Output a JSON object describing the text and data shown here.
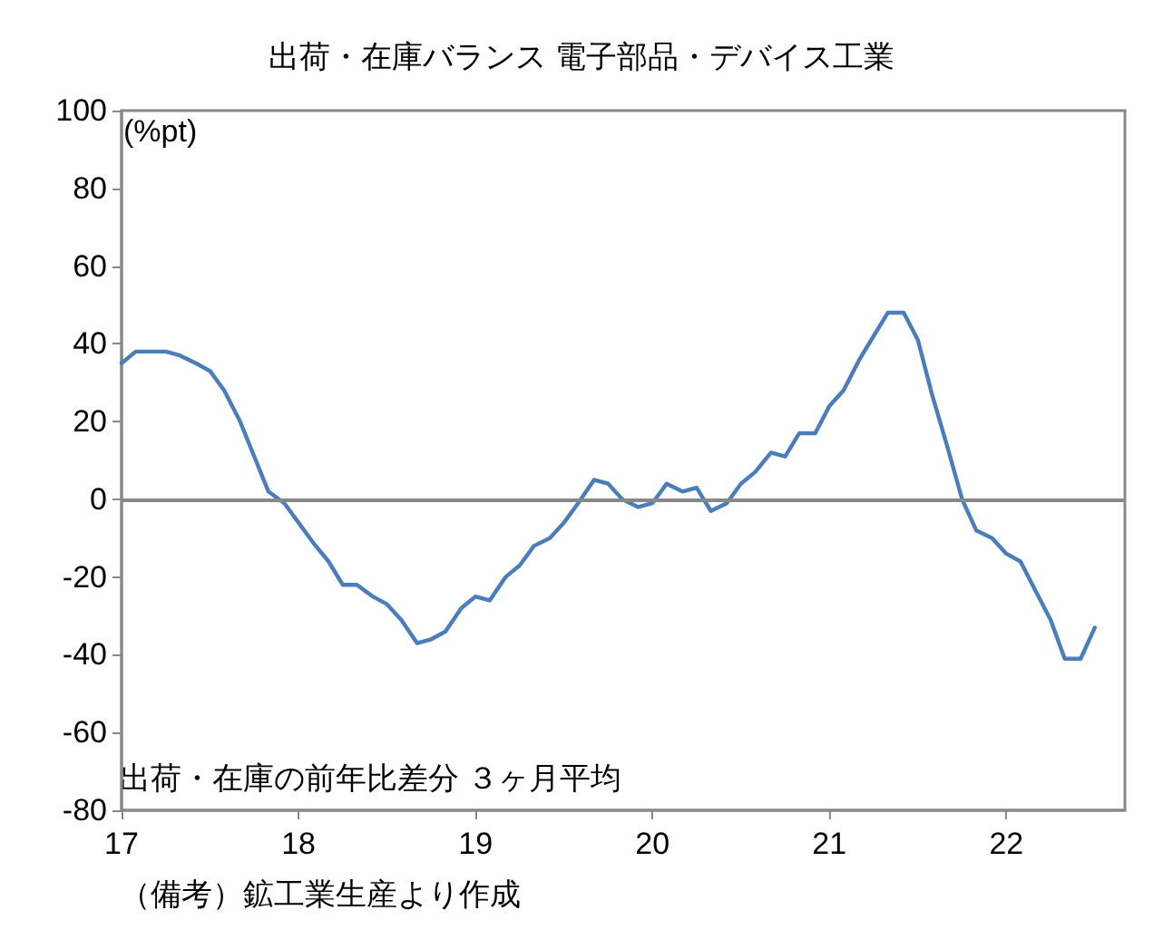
{
  "chart_data": {
    "type": "line",
    "title": "出荷・在庫バランス 電子部品・デバイス工業",
    "ylabel": "(%pt)",
    "annotations": [
      "出荷・在庫の前年比差分 ３ヶ月平均",
      "（備考）鉱工業生産より作成"
    ],
    "x": [
      17,
      17.08,
      17.17,
      17.25,
      17.33,
      17.42,
      17.5,
      17.58,
      17.67,
      17.75,
      17.83,
      17.92,
      18,
      18.08,
      18.17,
      18.25,
      18.33,
      18.42,
      18.5,
      18.58,
      18.67,
      18.75,
      18.83,
      18.92,
      19,
      19.08,
      19.17,
      19.25,
      19.33,
      19.42,
      19.5,
      19.58,
      19.67,
      19.75,
      19.83,
      19.92,
      20,
      20.08,
      20.17,
      20.25,
      20.33,
      20.42,
      20.5,
      20.58,
      20.67,
      20.75,
      20.83,
      20.92,
      21,
      21.08,
      21.17,
      21.25,
      21.33,
      21.42,
      21.5,
      21.58,
      21.67,
      21.75,
      21.83,
      21.92,
      22,
      22.08,
      22.17,
      22.25,
      22.33,
      22.42,
      22.5
    ],
    "series": [
      {
        "color": "#4a7ebb",
        "values": [
          35,
          38,
          38,
          38,
          37,
          35,
          33,
          28,
          20,
          11,
          2,
          -1,
          -6,
          -11,
          -16,
          -22,
          -22,
          -25,
          -27,
          -31,
          -37,
          -36,
          -34,
          -28,
          -25,
          -26,
          -20,
          -17,
          -12,
          -10,
          -6,
          -1,
          5,
          4,
          0,
          -2,
          -1,
          4,
          2,
          3,
          -3,
          -1,
          4,
          7,
          12,
          11,
          17,
          17,
          24,
          28,
          36,
          42,
          48,
          48,
          41,
          27,
          13,
          0,
          -8,
          -10,
          -14,
          -16,
          -24,
          -31,
          -41,
          -41,
          -33
        ]
      }
    ],
    "xlim": [
      17,
      22.67
    ],
    "xticks": [
      17,
      18,
      19,
      20,
      21,
      22
    ],
    "ylim": [
      -80,
      100
    ],
    "yticks": [
      -80,
      -60,
      -40,
      -20,
      0,
      20,
      40,
      60,
      80,
      100
    ],
    "ref_lines": [
      {
        "axis": "y",
        "value": 0,
        "color": "#888888"
      }
    ],
    "grid": false,
    "marker": "none",
    "line_style": "solid"
  }
}
